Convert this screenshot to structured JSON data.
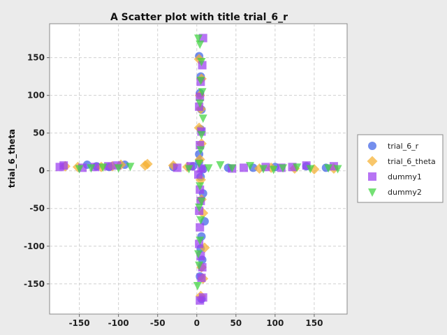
{
  "chart_data": {
    "type": "scatter",
    "title": "A Scatter plot with title trial_6_r",
    "xlabel": "",
    "ylabel": "trial_6_theta",
    "xlim": [
      -188,
      192
    ],
    "ylim": [
      -190,
      195
    ],
    "xticks": [
      -150,
      -100,
      -50,
      0,
      50,
      100,
      150
    ],
    "yticks": [
      -150,
      -100,
      -50,
      0,
      50,
      100,
      150
    ],
    "grid": true,
    "legend_position": "right",
    "series": [
      {
        "name": "trial_6_r",
        "color": "#3f63e6",
        "marker": "circle",
        "points": [
          [
            -140,
            8
          ],
          [
            -128,
            6
          ],
          [
            -112,
            5
          ],
          [
            -92,
            8
          ],
          [
            -30,
            5
          ],
          [
            -5,
            6
          ],
          [
            3,
            12
          ],
          [
            5,
            -8
          ],
          [
            8,
            -30
          ],
          [
            10,
            -67
          ],
          [
            6,
            -87
          ],
          [
            5,
            -103
          ],
          [
            7,
            -118
          ],
          [
            4,
            -140
          ],
          [
            6,
            -170
          ],
          [
            3,
            152
          ],
          [
            5,
            125
          ],
          [
            4,
            103
          ],
          [
            6,
            81
          ],
          [
            5,
            55
          ],
          [
            3,
            22
          ],
          [
            8,
            2
          ],
          [
            40,
            4
          ],
          [
            72,
            4
          ],
          [
            100,
            5
          ],
          [
            140,
            6
          ],
          [
            165,
            4
          ]
        ]
      },
      {
        "name": "trial_6_theta",
        "color": "#f5b030",
        "marker": "diamond",
        "points": [
          [
            -168,
            6
          ],
          [
            -152,
            5
          ],
          [
            -122,
            5
          ],
          [
            -108,
            6
          ],
          [
            -97,
            8
          ],
          [
            -66,
            7
          ],
          [
            -63,
            9
          ],
          [
            -30,
            7
          ],
          [
            -12,
            5
          ],
          [
            3,
            148
          ],
          [
            6,
            122
          ],
          [
            4,
            100
          ],
          [
            5,
            82
          ],
          [
            3,
            57
          ],
          [
            6,
            36
          ],
          [
            4,
            15
          ],
          [
            5,
            -12
          ],
          [
            6,
            -38
          ],
          [
            8,
            -56
          ],
          [
            10,
            -102
          ],
          [
            6,
            -128
          ],
          [
            8,
            -143
          ],
          [
            5,
            -166
          ],
          [
            80,
            3
          ],
          [
            95,
            4
          ],
          [
            125,
            3
          ],
          [
            150,
            2
          ],
          [
            175,
            3
          ]
        ]
      },
      {
        "name": "dummy1",
        "color": "#9b3ff0",
        "marker": "square",
        "points": [
          [
            -175,
            5
          ],
          [
            -170,
            7
          ],
          [
            -146,
            4
          ],
          [
            -130,
            5
          ],
          [
            -113,
            6
          ],
          [
            -102,
            7
          ],
          [
            -25,
            4
          ],
          [
            -8,
            6
          ],
          [
            8,
            176
          ],
          [
            7,
            140
          ],
          [
            5,
            118
          ],
          [
            4,
            98
          ],
          [
            3,
            85
          ],
          [
            6,
            52
          ],
          [
            4,
            34
          ],
          [
            6,
            3
          ],
          [
            2,
            -5
          ],
          [
            4,
            -25
          ],
          [
            5,
            -40
          ],
          [
            3,
            -53
          ],
          [
            4,
            -75
          ],
          [
            3,
            -97
          ],
          [
            5,
            -113
          ],
          [
            7,
            -128
          ],
          [
            6,
            -142
          ],
          [
            4,
            -172
          ],
          [
            8,
            -168
          ],
          [
            45,
            3
          ],
          [
            60,
            4
          ],
          [
            88,
            5
          ],
          [
            108,
            4
          ],
          [
            122,
            5
          ],
          [
            140,
            7
          ],
          [
            175,
            6
          ]
        ]
      },
      {
        "name": "dummy2",
        "color": "#3fd43f",
        "marker": "triangle-down",
        "points": [
          [
            -150,
            3
          ],
          [
            -135,
            4
          ],
          [
            -120,
            5
          ],
          [
            -100,
            4
          ],
          [
            -85,
            6
          ],
          [
            -10,
            3
          ],
          [
            2,
            176
          ],
          [
            4,
            168
          ],
          [
            6,
            145
          ],
          [
            5,
            120
          ],
          [
            7,
            105
          ],
          [
            4,
            90
          ],
          [
            8,
            70
          ],
          [
            6,
            48
          ],
          [
            5,
            28
          ],
          [
            3,
            10
          ],
          [
            15,
            4
          ],
          [
            30,
            8
          ],
          [
            45,
            4
          ],
          [
            68,
            7
          ],
          [
            85,
            3
          ],
          [
            98,
            2
          ],
          [
            110,
            4
          ],
          [
            128,
            5
          ],
          [
            145,
            3
          ],
          [
            168,
            4
          ],
          [
            180,
            3
          ],
          [
            4,
            -20
          ],
          [
            6,
            -40
          ],
          [
            3,
            -48
          ],
          [
            5,
            -65
          ],
          [
            4,
            -92
          ],
          [
            2,
            -110
          ],
          [
            3,
            -125
          ],
          [
            1,
            -152
          ]
        ]
      }
    ]
  }
}
